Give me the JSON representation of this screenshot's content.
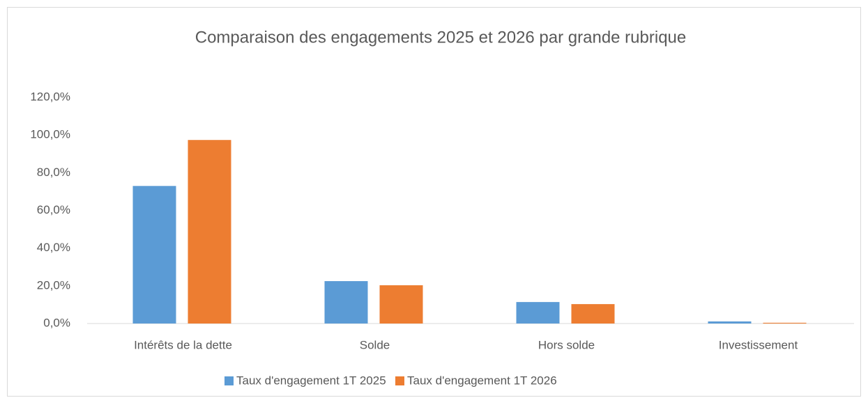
{
  "chart_data": {
    "type": "bar",
    "title": "Comparaison des engagements 2025 et 2026 par grande rubrique",
    "categories": [
      "Intérêts de la dette",
      "Solde",
      "Hors solde",
      "Investissement"
    ],
    "series": [
      {
        "name": "Taux d'engagement 1T 2025",
        "color": "#5b9bd5",
        "values": [
          73,
          22.5,
          11.4,
          1.1
        ]
      },
      {
        "name": "Taux d'engagement 1T 2026",
        "color": "#ed7d31",
        "values": [
          97.4,
          20.3,
          10.3,
          0.4
        ]
      }
    ],
    "ylim": [
      0,
      120
    ],
    "yticks": [
      {
        "value": 0,
        "label": "0,0%"
      },
      {
        "value": 20,
        "label": "20,0%"
      },
      {
        "value": 40,
        "label": "40,0%"
      },
      {
        "value": 60,
        "label": "60,0%"
      },
      {
        "value": 80,
        "label": "80,0%"
      },
      {
        "value": 100,
        "label": "100,0%"
      },
      {
        "value": 120,
        "label": "120,0%"
      }
    ],
    "grid": false,
    "legend": "bottom"
  }
}
